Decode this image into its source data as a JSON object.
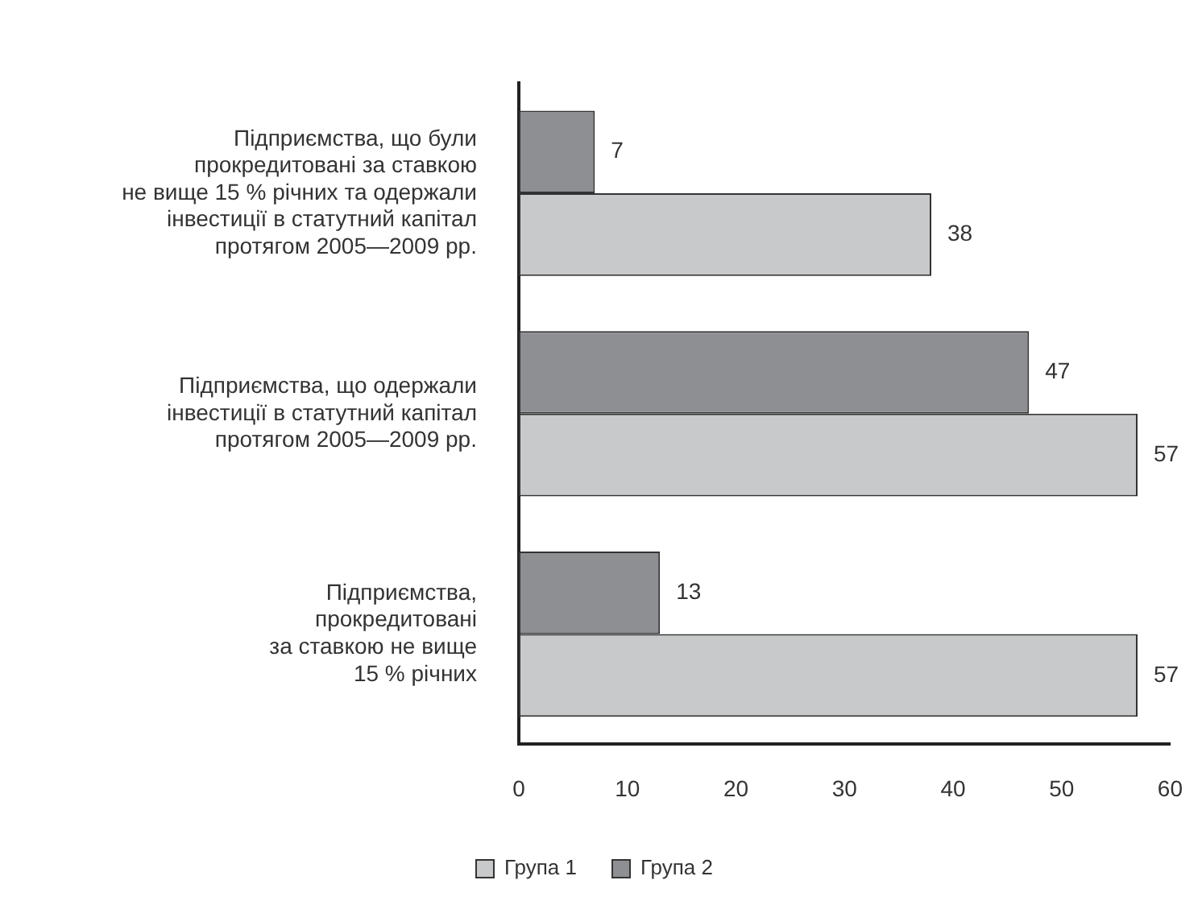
{
  "chart_data": {
    "type": "bar",
    "orientation": "horizontal",
    "categories": [
      "Підприємства, що були\nпрокредитовані за ставкою\nне вище 15 % річних та одержали\nінвестиції в статутний капітал\nпротягом 2005—2009 рр.",
      "Підприємства, що одержали\nінвестиції в статутний капітал\nпротягом 2005—2009 рр.",
      "Підприємства,\nпрокредитовані\nза ставкою не вище\n15 % річних"
    ],
    "series": [
      {
        "name": "Група 1",
        "color": "#c8c9cb",
        "values": [
          38,
          57,
          57
        ]
      },
      {
        "name": "Група 2",
        "color": "#8e8f92",
        "values": [
          7,
          47,
          13
        ]
      }
    ],
    "xlim": [
      0,
      60
    ],
    "xticks": [
      0,
      10,
      20,
      30,
      40,
      50,
      60
    ],
    "grid": false,
    "legend": "bottom",
    "data_labels": true
  }
}
